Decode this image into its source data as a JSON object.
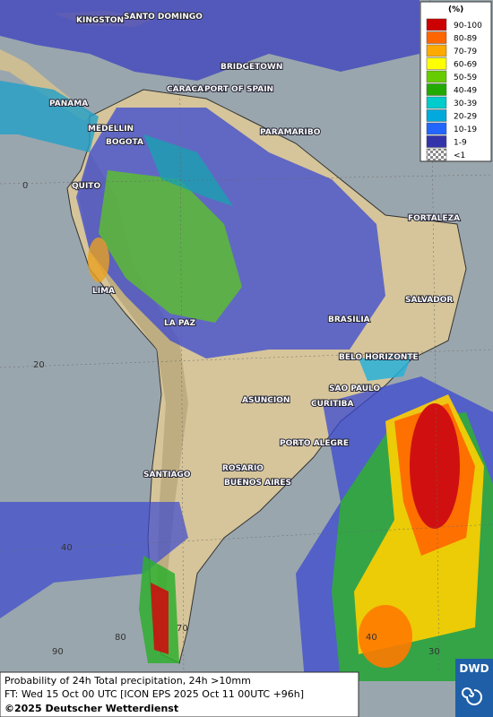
{
  "legend": {
    "title": "(%)",
    "items": [
      {
        "label": "90-100",
        "color": "#cc0000"
      },
      {
        "label": "80-89",
        "color": "#ff6600"
      },
      {
        "label": "70-79",
        "color": "#ffaa00"
      },
      {
        "label": "60-69",
        "color": "#ffff00"
      },
      {
        "label": "50-59",
        "color": "#66cc00"
      },
      {
        "label": "40-49",
        "color": "#22aa00"
      },
      {
        "label": "30-39",
        "color": "#00cccc"
      },
      {
        "label": "20-29",
        "color": "#00aadd"
      },
      {
        "label": "10-19",
        "color": "#2266ff"
      },
      {
        "label": "1-9",
        "color": "#3333aa"
      },
      {
        "label": "<1",
        "color": "checker"
      }
    ]
  },
  "cities": [
    "KINGSTON",
    "SANTO DOMINGO",
    "BRIDGETOWN",
    "CARACAS",
    "PORT OF SPAIN",
    "PANAMA",
    "MEDELLIN",
    "BOGOTA",
    "PARAMARIBO",
    "QUITO",
    "FORTALEZA",
    "LIMA",
    "SALVADOR",
    "BRASILIA",
    "LA PAZ",
    "BELO HORIZONTE",
    "SAO PAULO",
    "ASUNCION",
    "CURITIBA",
    "PORTO ALEGRE",
    "ROSARIO",
    "SANTIAGO",
    "BUENOS AIRES"
  ],
  "grid_labels": [
    "0",
    "20",
    "40",
    "70",
    "80",
    "90",
    "40",
    "30"
  ],
  "footer": [
    "Probability of 24h Total precipitation, 24h >10mm",
    "FT: Wed 15 Oct 00 UTC [ICON EPS 2025 Oct 11 00UTC +96h]",
    "©2025 Deutscher Wetterdienst"
  ],
  "logo": "DWD"
}
